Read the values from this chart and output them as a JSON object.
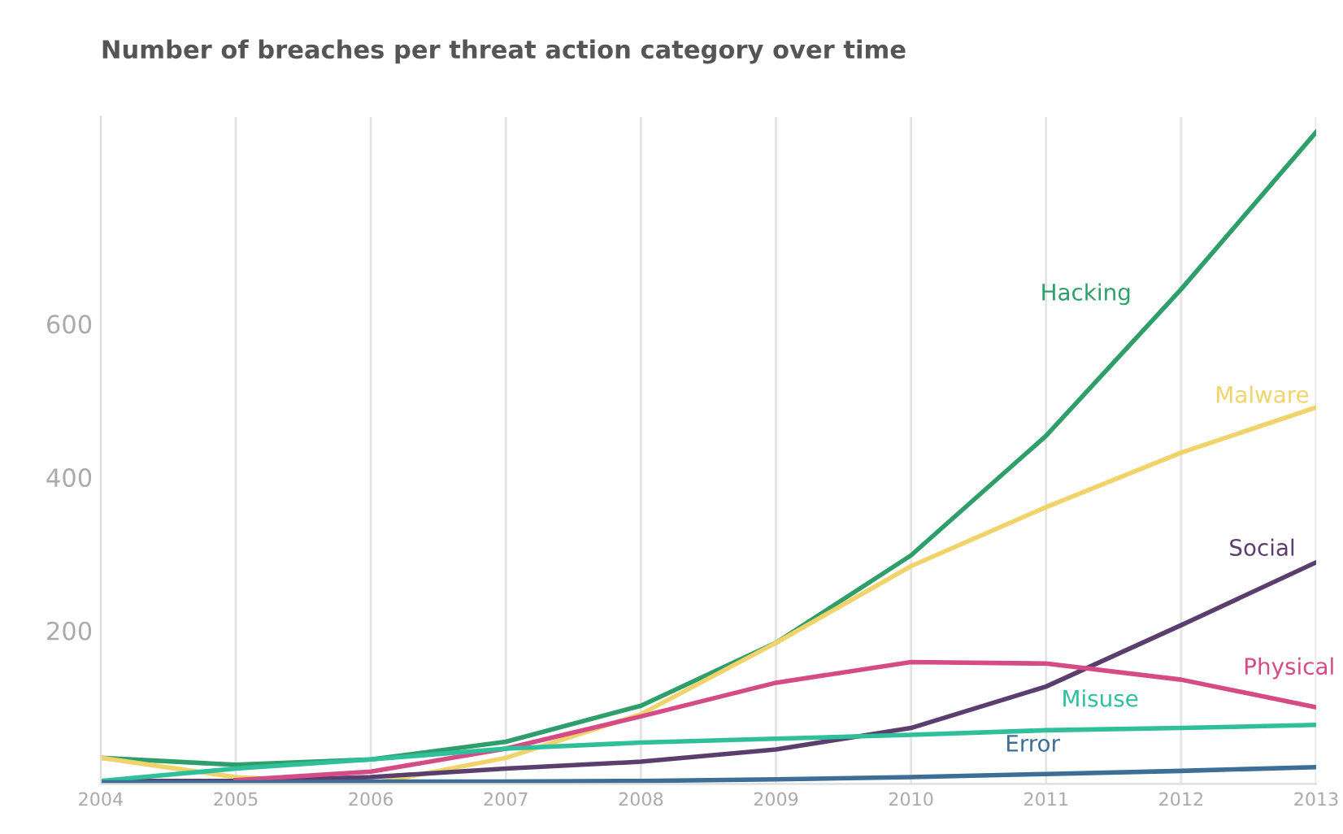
{
  "chart_data": {
    "type": "line",
    "title": "Number of breaches per threat action category over time",
    "x": [
      2004,
      2005,
      2006,
      2007,
      2008,
      2009,
      2010,
      2011,
      2012,
      2013
    ],
    "series": [
      {
        "name": "Hacking",
        "color": "#2e9e6a",
        "values": [
          34,
          25,
          32,
          55,
          102,
          184,
          298,
          454,
          645,
          850
        ]
      },
      {
        "name": "Malware",
        "color": "#f0d36a",
        "values": [
          34,
          9,
          0,
          34,
          91,
          184,
          284,
          361,
          432,
          491
        ]
      },
      {
        "name": "Social",
        "color": "#5a3f6e",
        "values": [
          4,
          4,
          9,
          20,
          29,
          45,
          73,
          127,
          207,
          289
        ]
      },
      {
        "name": "Physical",
        "color": "#d44b86",
        "values": [
          null,
          5,
          16,
          46,
          88,
          132,
          159,
          157,
          136,
          100
        ]
      },
      {
        "name": "Misuse",
        "color": "#2fbf9a",
        "values": [
          4,
          20,
          32,
          46,
          54,
          59,
          64,
          70,
          73,
          77
        ]
      },
      {
        "name": "Error",
        "color": "#3d6f96",
        "values": [
          2,
          2,
          3,
          3,
          4,
          6,
          9,
          13,
          17,
          22
        ]
      }
    ],
    "xlim": [
      2004,
      2013
    ],
    "xticks": [
      2004,
      2005,
      2006,
      2007,
      2008,
      2009,
      2010,
      2011,
      2012,
      2013
    ],
    "ylim": [
      0,
      870
    ],
    "yticks": [
      200,
      400,
      600
    ],
    "grid": "x",
    "legend": false
  }
}
